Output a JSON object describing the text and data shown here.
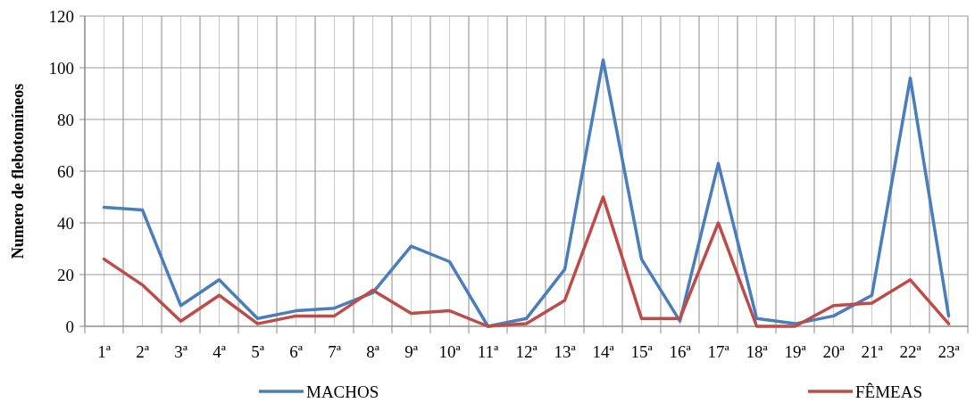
{
  "chart_data": {
    "type": "line",
    "ylabel": "Numero de flebotomíneos",
    "categories": [
      "1ª",
      "2ª",
      "3ª",
      "4ª",
      "5ª",
      "6ª",
      "7ª",
      "8ª",
      "9ª",
      "10ª",
      "11ª",
      "12ª",
      "13ª",
      "14ª",
      "15ª",
      "16ª",
      "17ª",
      "18ª",
      "19ª",
      "20ª",
      "21ª",
      "22ª",
      "23ª"
    ],
    "series": [
      {
        "name": "MACHOS",
        "color": "#4a7ebb",
        "values": [
          46,
          45,
          8,
          18,
          3,
          6,
          7,
          13,
          31,
          25,
          0,
          3,
          22,
          103,
          26,
          2,
          63,
          3,
          1,
          4,
          12,
          96,
          4
        ]
      },
      {
        "name": "FÊMEAS",
        "color": "#be4b48",
        "values": [
          26,
          16,
          2,
          12,
          1,
          4,
          4,
          14,
          5,
          6,
          0,
          1,
          10,
          50,
          3,
          3,
          40,
          0,
          0,
          8,
          9,
          18,
          1
        ]
      }
    ],
    "ylim": [
      0,
      120
    ],
    "yticks": [
      0,
      20,
      40,
      60,
      80,
      100,
      120
    ],
    "grid": true,
    "legend": "bottom",
    "marker": "none",
    "line_style": "solid"
  }
}
